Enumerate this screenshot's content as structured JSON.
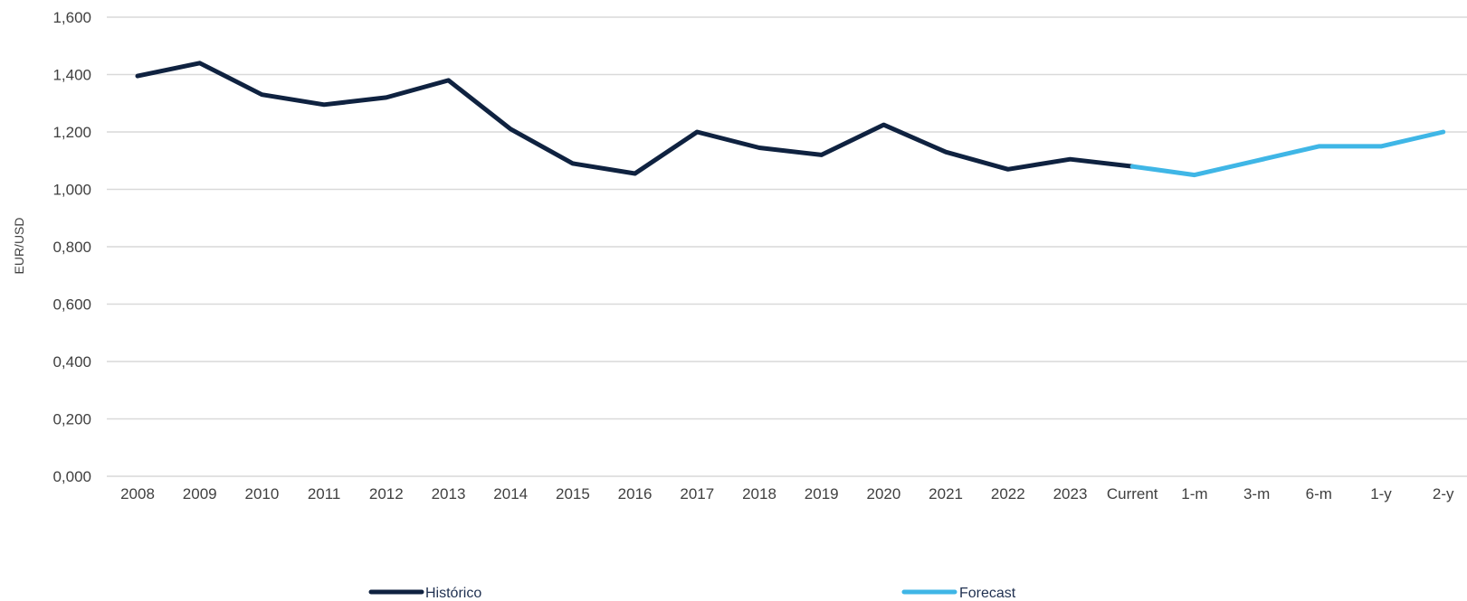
{
  "chart_data": {
    "type": "line",
    "title": "",
    "xlabel": "",
    "ylabel": "EUR/USD",
    "ylim": [
      0,
      1.6
    ],
    "yticks": [
      "0,000",
      "0,200",
      "0,400",
      "0,600",
      "0,800",
      "1,000",
      "1,200",
      "1,400",
      "1,600"
    ],
    "categories": [
      "2008",
      "2009",
      "2010",
      "2011",
      "2012",
      "2013",
      "2014",
      "2015",
      "2016",
      "2017",
      "2018",
      "2019",
      "2020",
      "2021",
      "2022",
      "2023",
      "Current",
      "1-m",
      "3-m",
      "6-m",
      "1-y",
      "2-y"
    ],
    "series": [
      {
        "name": "Histórico",
        "color": "#0f2240",
        "values": [
          1.395,
          1.44,
          1.33,
          1.295,
          1.32,
          1.38,
          1.21,
          1.09,
          1.055,
          1.2,
          1.145,
          1.12,
          1.225,
          1.13,
          1.07,
          1.105,
          1.08,
          null,
          null,
          null,
          null,
          null
        ]
      },
      {
        "name": "Forecast",
        "color": "#3fb6e6",
        "values": [
          null,
          null,
          null,
          null,
          null,
          null,
          null,
          null,
          null,
          null,
          null,
          null,
          null,
          null,
          null,
          null,
          1.08,
          1.05,
          1.1,
          1.15,
          1.15,
          1.2
        ]
      }
    ],
    "grid": true,
    "legend": "bottom"
  }
}
